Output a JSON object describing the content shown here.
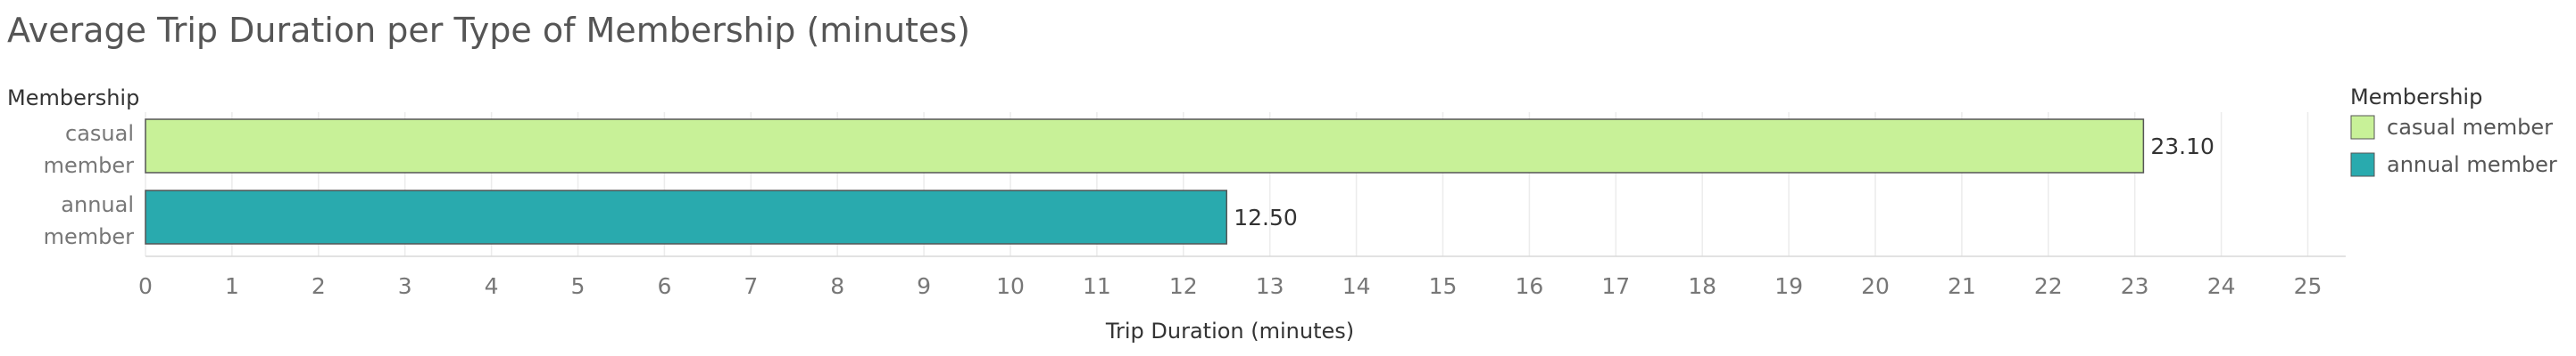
{
  "chart_data": {
    "type": "bar",
    "orientation": "horizontal",
    "title": "Average Trip Duration per Type of Membership (minutes)",
    "category_header": "Membership",
    "categories": [
      [
        "casual",
        "member"
      ],
      [
        "annual",
        "member"
      ]
    ],
    "values": [
      23.1,
      12.5
    ],
    "value_labels": [
      "23.10",
      "12.50"
    ],
    "xlabel": "Trip Duration (minutes)",
    "ylabel": "Membership",
    "xlim": [
      0,
      25
    ],
    "xticks": [
      0,
      1,
      2,
      3,
      4,
      5,
      6,
      7,
      8,
      9,
      10,
      11,
      12,
      13,
      14,
      15,
      16,
      17,
      18,
      19,
      20,
      21,
      22,
      23,
      24,
      25
    ],
    "grid": true,
    "legend": {
      "title": "Membership",
      "position": "right",
      "entries": [
        {
          "label": "casual member",
          "color": "#c8f198"
        },
        {
          "label": "annual member",
          "color": "#29aaae"
        }
      ]
    }
  }
}
